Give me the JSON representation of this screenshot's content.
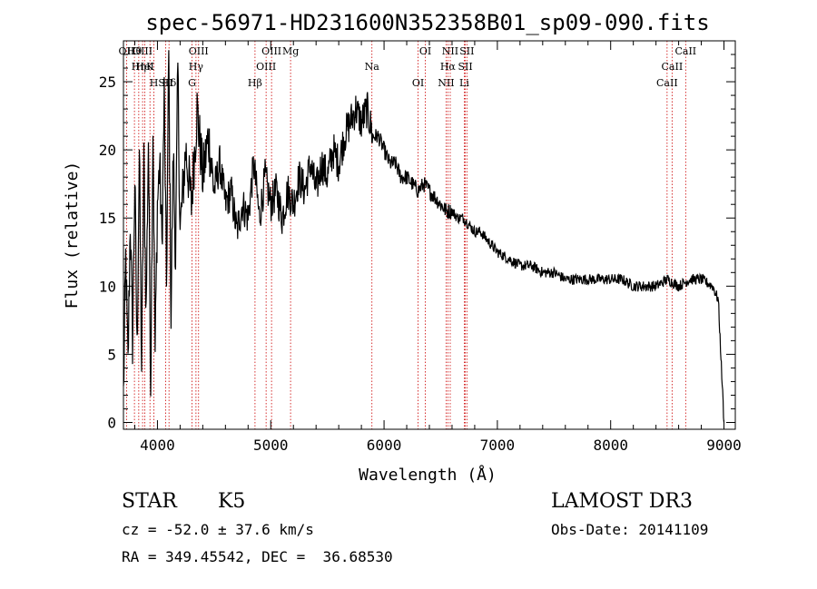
{
  "chart_data": {
    "type": "line",
    "title": "spec-56971-HD231600N352358B01_sp09-090.fits",
    "xlabel": "Wavelength (Å)",
    "ylabel": "Flux (relative)",
    "xlim": [
      3700,
      9100
    ],
    "ylim": [
      -0.5,
      28
    ],
    "x_ticks": [
      4000,
      5000,
      6000,
      7000,
      8000,
      9000
    ],
    "y_ticks": [
      0,
      5,
      10,
      15,
      20,
      25
    ],
    "grid": false,
    "series": [
      {
        "name": "flux",
        "x": [
          3700,
          3720,
          3740,
          3760,
          3780,
          3800,
          3820,
          3840,
          3860,
          3880,
          3900,
          3920,
          3940,
          3960,
          3980,
          4000,
          4020,
          4040,
          4060,
          4080,
          4100,
          4120,
          4140,
          4160,
          4180,
          4200,
          4250,
          4300,
          4350,
          4400,
          4450,
          4500,
          4550,
          4600,
          4650,
          4700,
          4750,
          4800,
          4850,
          4900,
          4950,
          5000,
          5050,
          5100,
          5150,
          5200,
          5250,
          5300,
          5350,
          5400,
          5450,
          5500,
          5550,
          5600,
          5650,
          5700,
          5750,
          5800,
          5850,
          5900,
          5950,
          6000,
          6050,
          6100,
          6150,
          6200,
          6250,
          6300,
          6350,
          6400,
          6450,
          6500,
          6550,
          6600,
          6650,
          6700,
          6750,
          6800,
          6850,
          6900,
          6950,
          7000,
          7100,
          7200,
          7300,
          7400,
          7500,
          7600,
          7700,
          7800,
          7900,
          8000,
          8100,
          8200,
          8300,
          8400,
          8500,
          8600,
          8700,
          8800,
          8900,
          8950,
          9000
        ],
        "y": [
          2,
          12,
          4,
          15,
          6,
          18,
          5,
          20,
          4,
          19,
          8,
          21,
          3,
          22,
          5,
          16,
          19,
          13,
          24,
          10,
          27,
          8,
          20,
          12,
          26,
          14,
          20,
          16,
          23,
          18,
          21,
          17,
          19,
          16,
          17,
          14,
          16,
          15,
          19,
          15,
          18,
          16,
          17,
          15,
          17,
          16,
          18,
          17,
          19,
          17,
          19,
          18,
          20,
          19,
          21,
          22,
          23,
          22,
          23,
          21,
          21,
          20,
          19,
          19,
          18,
          18,
          17.5,
          17,
          17.5,
          17,
          16.5,
          16,
          15.5,
          15.5,
          15,
          15,
          14.5,
          14,
          14,
          13.5,
          13,
          12.5,
          12,
          11.5,
          11.5,
          11,
          11,
          10.5,
          10.5,
          10.5,
          10.5,
          10.5,
          10.5,
          10,
          10,
          10,
          10.5,
          10,
          10.5,
          10.5,
          10,
          9,
          0
        ]
      }
    ],
    "lines": [
      {
        "label": "Hθ",
        "x": 3797
      },
      {
        "label": "K",
        "x": 3934
      },
      {
        "label": "Hδ",
        "x": 4102
      },
      {
        "label": "OII",
        "x": 3727
      },
      {
        "label": "HeI",
        "x": 3889
      },
      {
        "label": "SII",
        "x": 4072
      },
      {
        "label": "OIII",
        "x": 3869
      },
      {
        "label": "Hη",
        "x": 3835
      },
      {
        "label": "H",
        "x": 3969
      },
      {
        "label": "OIII",
        "x": 4363
      },
      {
        "label": "Hγ",
        "x": 4340
      },
      {
        "label": "G",
        "x": 4305
      },
      {
        "label": "OIII",
        "x": 5007
      },
      {
        "label": "OIII",
        "x": 4959
      },
      {
        "label": "Hβ",
        "x": 4861
      },
      {
        "label": "Mg",
        "x": 5175
      },
      {
        "label": "Na",
        "x": 5893
      },
      {
        "label": "OI",
        "x": 6300
      },
      {
        "label": "OI",
        "x": 6364
      },
      {
        "label": "Hα",
        "x": 6563
      },
      {
        "label": "NII",
        "x": 6548
      },
      {
        "label": "NII",
        "x": 6584
      },
      {
        "label": "SII",
        "x": 6717
      },
      {
        "label": "Li",
        "x": 6708
      },
      {
        "label": "SII",
        "x": 6731
      },
      {
        "label": "CaII",
        "x": 8542
      },
      {
        "label": "CaII",
        "x": 8498
      },
      {
        "label": "CaII",
        "x": 8662
      }
    ]
  },
  "info": {
    "class_label": "STAR",
    "subclass": "K5",
    "survey": "LAMOST DR3",
    "cz": "cz = -52.0 ± 37.6 km/s",
    "obs_date": "Obs-Date: 20141109",
    "coords": "RA = 349.45542, DEC =  36.68530"
  },
  "colors": {
    "axis": "#000000",
    "spectrum": "#000000",
    "line_marker": "#cc0000"
  }
}
